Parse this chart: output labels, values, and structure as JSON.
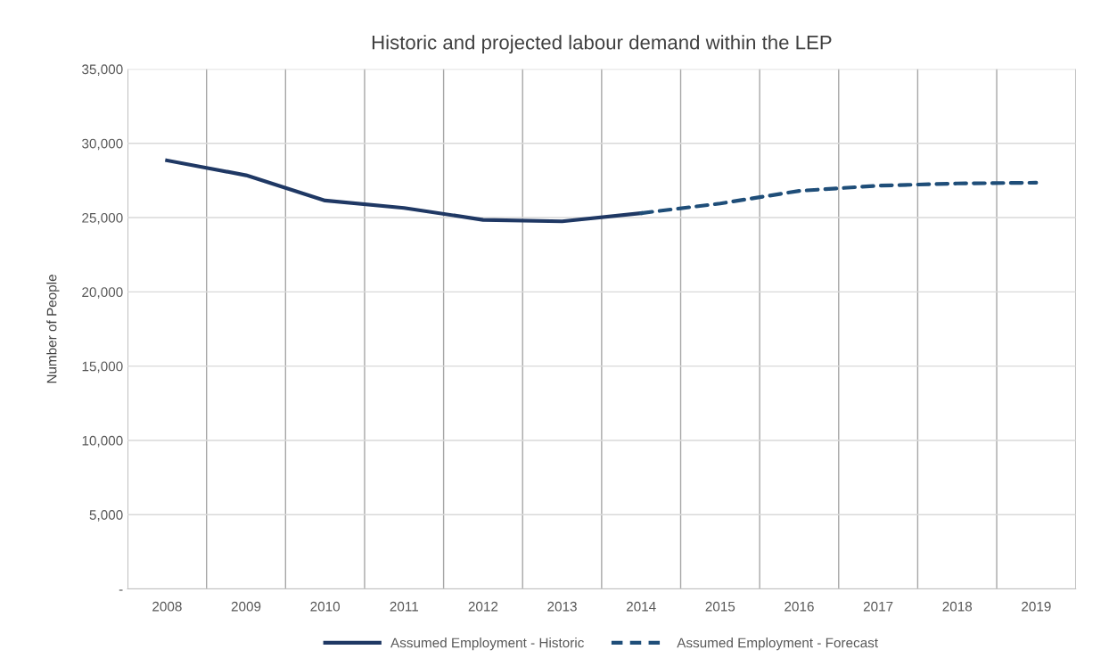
{
  "chart_data": {
    "type": "line",
    "title": "Historic and projected labour demand within the LEP",
    "ylabel": "Number of People",
    "categories": [
      "2008",
      "2009",
      "2010",
      "2011",
      "2012",
      "2013",
      "2014",
      "2015",
      "2016",
      "2017",
      "2018",
      "2019"
    ],
    "series": [
      {
        "name": "Assumed Employment - Historic",
        "color": "#1f3864",
        "line_style": "solid",
        "values": [
          28850,
          27850,
          26150,
          25650,
          24850,
          24750,
          25300,
          null,
          null,
          null,
          null,
          null
        ]
      },
      {
        "name": "Assumed Employment - Forecast",
        "color": "#1f4e79",
        "line_style": "dashed",
        "values": [
          null,
          null,
          null,
          null,
          null,
          null,
          25300,
          25950,
          26800,
          27150,
          27300,
          27350
        ]
      }
    ],
    "ylim": [
      0,
      35000
    ],
    "yticks": [
      {
        "value": 0,
        "label": "-"
      },
      {
        "value": 5000,
        "label": "5,000"
      },
      {
        "value": 10000,
        "label": "10,000"
      },
      {
        "value": 15000,
        "label": "15,000"
      },
      {
        "value": 20000,
        "label": "20,000"
      },
      {
        "value": 25000,
        "label": "25,000"
      },
      {
        "value": 30000,
        "label": "30,000"
      },
      {
        "value": 35000,
        "label": "35,000"
      }
    ],
    "grid": true,
    "legend": "bottom",
    "marker": "none"
  }
}
